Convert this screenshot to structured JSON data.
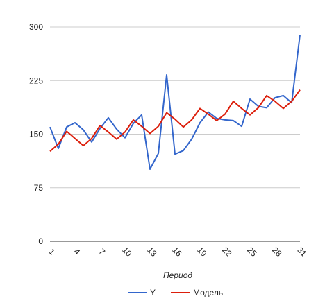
{
  "chart_data": {
    "type": "line",
    "title": "",
    "xlabel": "Период",
    "ylabel": "",
    "ylim": [
      0,
      300
    ],
    "yticks": [
      0,
      75,
      150,
      225,
      300
    ],
    "xticks": [
      1,
      4,
      7,
      10,
      13,
      16,
      19,
      22,
      25,
      28,
      31
    ],
    "xlim": [
      1,
      31
    ],
    "grid": true,
    "legend_position": "bottom",
    "x": [
      1,
      2,
      3,
      4,
      5,
      6,
      7,
      8,
      9,
      10,
      11,
      12,
      13,
      14,
      15,
      16,
      17,
      18,
      19,
      20,
      21,
      22,
      23,
      24,
      25,
      26,
      27,
      28,
      29,
      30,
      31
    ],
    "series": [
      {
        "name": "Y",
        "color": "#3366cc",
        "values": [
          160,
          130,
          160,
          166,
          156,
          139,
          158,
          173,
          157,
          145,
          165,
          177,
          101,
          123,
          233,
          122,
          127,
          143,
          166,
          181,
          172,
          170,
          169,
          161,
          199,
          189,
          187,
          201,
          204,
          194,
          289
        ]
      },
      {
        "name": "Модель",
        "color": "#dc1f0c",
        "values": [
          126,
          136,
          154,
          144,
          134,
          144,
          162,
          153,
          143,
          153,
          170,
          161,
          151,
          161,
          180,
          171,
          160,
          170,
          186,
          178,
          169,
          178,
          196,
          186,
          177,
          187,
          204,
          196,
          186,
          196,
          212
        ]
      }
    ]
  }
}
